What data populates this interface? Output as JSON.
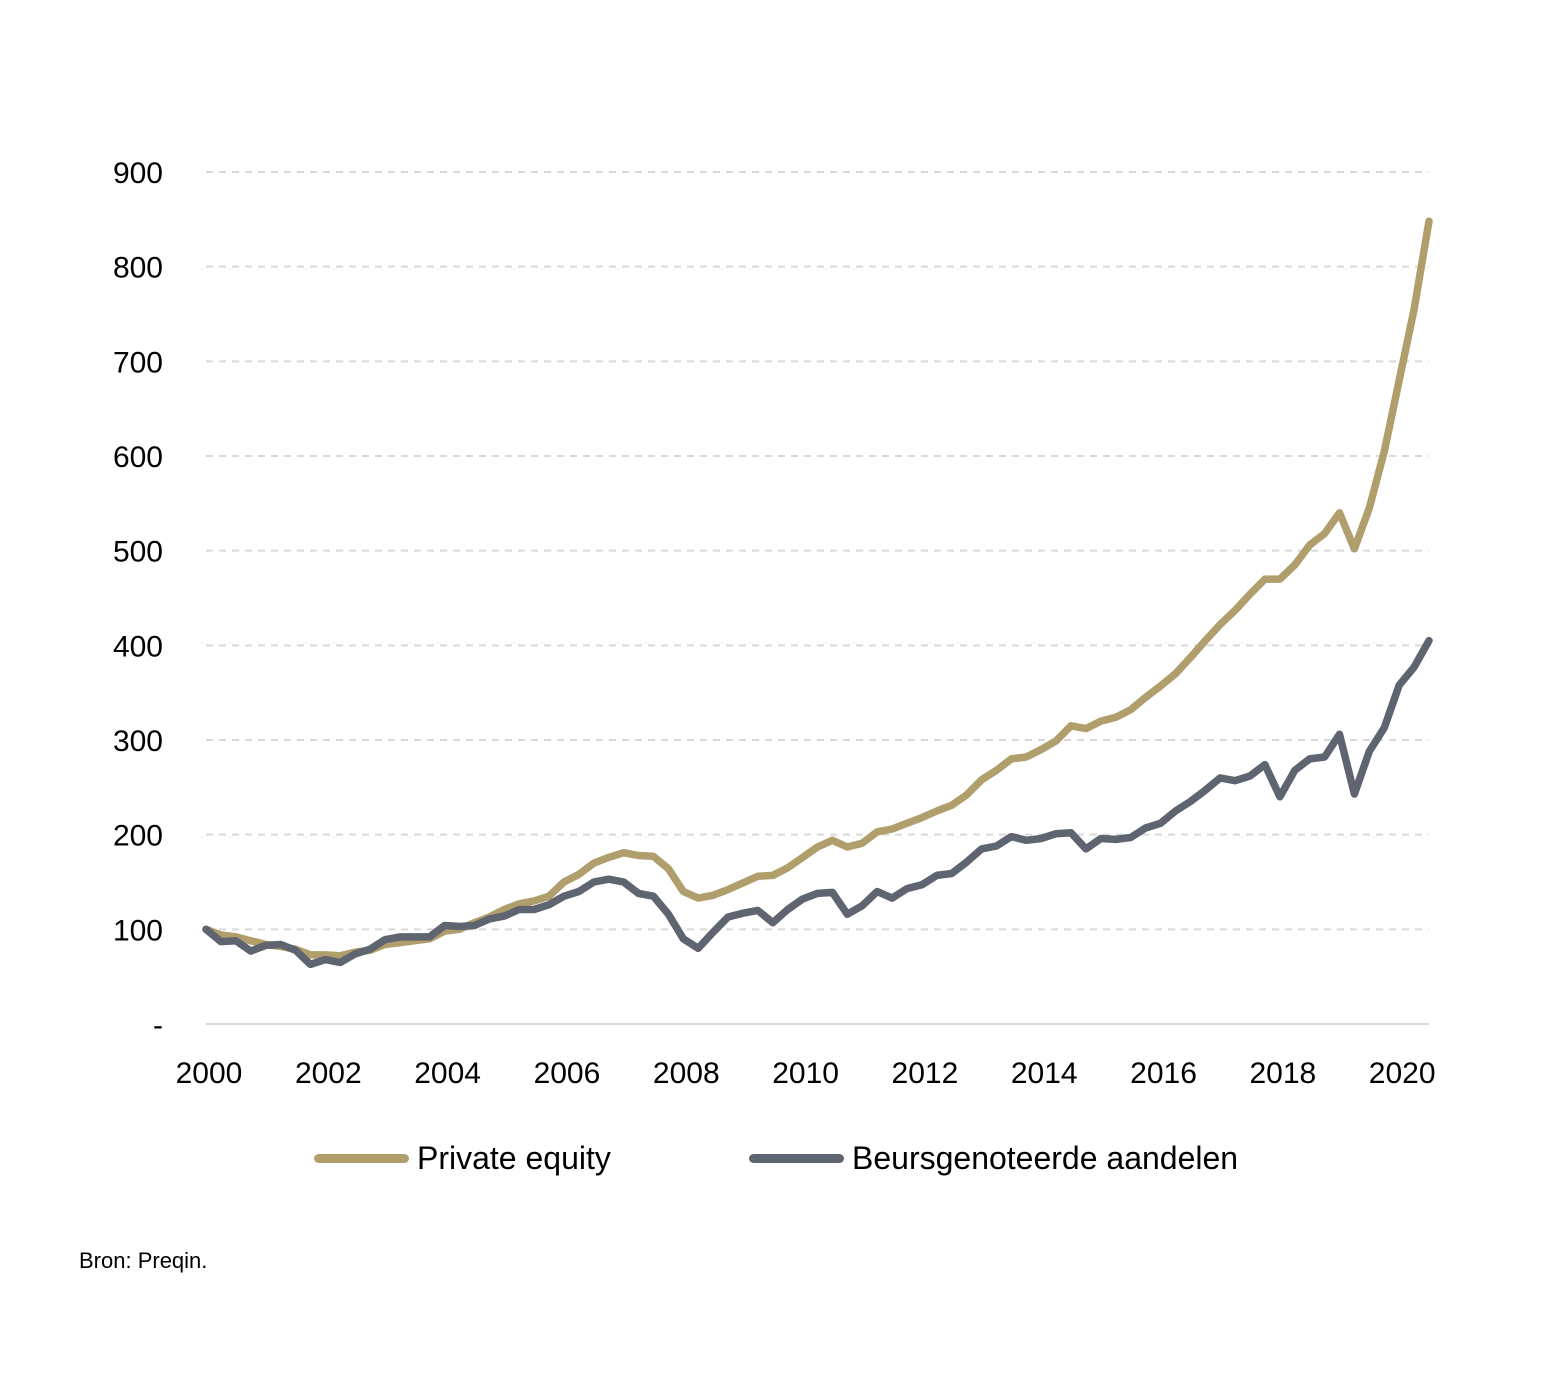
{
  "chart_data": {
    "type": "line",
    "title": "",
    "xlabel": "",
    "ylabel": "",
    "xlim": [
      2000,
      2020.5
    ],
    "ylim": [
      0,
      900
    ],
    "y_ticks": [
      0,
      100,
      200,
      300,
      400,
      500,
      600,
      700,
      800,
      900
    ],
    "y_tick_labels": [
      "-",
      "100",
      "200",
      "300",
      "400",
      "500",
      "600",
      "700",
      "800",
      "900"
    ],
    "x_ticks": [
      2000,
      2002,
      2004,
      2006,
      2008,
      2010,
      2012,
      2014,
      2016,
      2018,
      2020
    ],
    "x_tick_labels": [
      "2000",
      "2002",
      "2004",
      "2006",
      "2008",
      "2010",
      "2012",
      "2014",
      "2016",
      "2018",
      "2020"
    ],
    "grid": "horizontal dashed",
    "legend_position": "bottom",
    "series": [
      {
        "name": "Private equity",
        "color": "#B09F6C",
        "x": [
          2000,
          2000.25,
          2000.5,
          2000.75,
          2001,
          2001.25,
          2001.5,
          2001.75,
          2002,
          2002.25,
          2002.5,
          2002.75,
          2003,
          2003.25,
          2003.5,
          2003.75,
          2004,
          2004.25,
          2004.5,
          2004.75,
          2005,
          2005.25,
          2005.5,
          2005.75,
          2006,
          2006.25,
          2006.5,
          2006.75,
          2007,
          2007.25,
          2007.5,
          2007.75,
          2008,
          2008.25,
          2008.5,
          2008.75,
          2009,
          2009.25,
          2009.5,
          2009.75,
          2010,
          2010.25,
          2010.5,
          2010.75,
          2011,
          2011.25,
          2011.5,
          2011.75,
          2012,
          2012.25,
          2012.5,
          2012.75,
          2013,
          2013.25,
          2013.5,
          2013.75,
          2014,
          2014.25,
          2014.5,
          2014.75,
          2015,
          2015.25,
          2015.5,
          2015.75,
          2016,
          2016.25,
          2016.5,
          2016.75,
          2017,
          2017.25,
          2017.5,
          2017.75,
          2018,
          2018.25,
          2018.5,
          2018.75,
          2019,
          2019.25,
          2019.5,
          2019.75,
          2020,
          2020.25,
          2020.5
        ],
        "values": [
          100,
          94,
          92,
          88,
          84,
          82,
          79,
          73,
          73,
          72,
          76,
          78,
          84,
          86,
          88,
          90,
          98,
          100,
          107,
          113,
          121,
          127,
          130,
          135,
          150,
          158,
          170,
          176,
          181,
          178,
          177,
          164,
          140,
          133,
          136,
          142,
          149,
          156,
          157,
          165,
          176,
          187,
          194,
          187,
          191,
          203,
          206,
          212,
          218,
          225,
          231,
          242,
          258,
          268,
          280,
          282,
          290,
          299,
          315,
          312,
          320,
          324,
          332,
          345,
          357,
          370,
          387,
          405,
          422,
          437,
          454,
          470,
          470,
          485,
          506,
          518,
          540,
          502,
          545,
          605,
          680,
          755,
          848
        ]
      },
      {
        "name": "Beursgenoteerde aandelen",
        "color": "#5E6470",
        "x": [
          2000,
          2000.25,
          2000.5,
          2000.75,
          2001,
          2001.25,
          2001.5,
          2001.75,
          2002,
          2002.25,
          2002.5,
          2002.75,
          2003,
          2003.25,
          2003.5,
          2003.75,
          2004,
          2004.25,
          2004.5,
          2004.75,
          2005,
          2005.25,
          2005.5,
          2005.75,
          2006,
          2006.25,
          2006.5,
          2006.75,
          2007,
          2007.25,
          2007.5,
          2007.75,
          2008,
          2008.25,
          2008.5,
          2008.75,
          2009,
          2009.25,
          2009.5,
          2009.75,
          2010,
          2010.25,
          2010.5,
          2010.75,
          2011,
          2011.25,
          2011.5,
          2011.75,
          2012,
          2012.25,
          2012.5,
          2012.75,
          2013,
          2013.25,
          2013.5,
          2013.75,
          2014,
          2014.25,
          2014.5,
          2014.75,
          2015,
          2015.25,
          2015.5,
          2015.75,
          2016,
          2016.25,
          2016.5,
          2016.75,
          2017,
          2017.25,
          2017.5,
          2017.75,
          2018,
          2018.25,
          2018.5,
          2018.75,
          2019,
          2019.25,
          2019.5,
          2019.75,
          2020,
          2020.25,
          2020.5
        ],
        "values": [
          100,
          87,
          88,
          77,
          83,
          84,
          78,
          63,
          68,
          65,
          74,
          79,
          89,
          92,
          92,
          92,
          104,
          103,
          104,
          111,
          114,
          121,
          121,
          126,
          135,
          140,
          150,
          153,
          150,
          138,
          135,
          116,
          90,
          80,
          97,
          113,
          117,
          120,
          107,
          121,
          132,
          138,
          139,
          116,
          125,
          140,
          133,
          143,
          147,
          157,
          159,
          171,
          185,
          188,
          198,
          194,
          196,
          201,
          202,
          185,
          196,
          195,
          197,
          207,
          212,
          225,
          235,
          247,
          260,
          257,
          262,
          274,
          240,
          268,
          280,
          282,
          306,
          243,
          288,
          313,
          358,
          377,
          405
        ]
      }
    ]
  },
  "source_note": "Bron: Preqin."
}
